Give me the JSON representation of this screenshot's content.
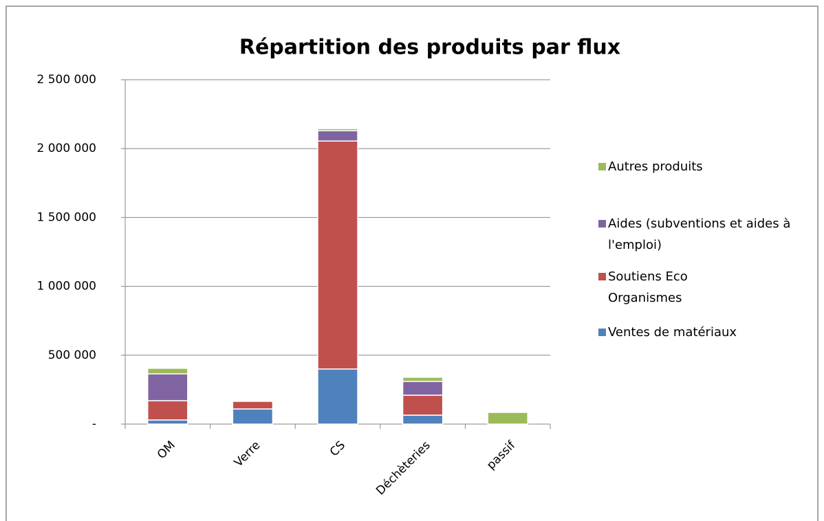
{
  "chart_data": {
    "type": "bar",
    "stacked": true,
    "title": "Répartition des produits par flux",
    "categories": [
      "OM",
      "Verre",
      "CS",
      "Déchèteries",
      "passif"
    ],
    "series": [
      {
        "name": "Ventes de matériaux",
        "color": "#4f81bd",
        "values": [
          30000,
          110000,
          400000,
          65000,
          0
        ]
      },
      {
        "name": "Soutiens Eco Organismes",
        "color": "#c0504d",
        "values": [
          140000,
          55000,
          1655000,
          145000,
          0
        ]
      },
      {
        "name": "Aides (subventions et aides à l'emploi)",
        "color": "#8064a2",
        "values": [
          195000,
          0,
          75000,
          100000,
          0
        ]
      },
      {
        "name": "Autres produits",
        "color": "#9bbb59",
        "values": [
          40000,
          0,
          15000,
          30000,
          85000
        ]
      }
    ],
    "ylim": [
      0,
      2500000
    ],
    "yticks": [
      {
        "value": 0,
        "label": "-"
      },
      {
        "value": 500000,
        "label": "500 000"
      },
      {
        "value": 1000000,
        "label": "1 000 000"
      },
      {
        "value": 1500000,
        "label": "1 500 000"
      },
      {
        "value": 2000000,
        "label": "2 000 000"
      },
      {
        "value": 2500000,
        "label": "2 500 000"
      }
    ],
    "grid": true,
    "legend": "right"
  }
}
